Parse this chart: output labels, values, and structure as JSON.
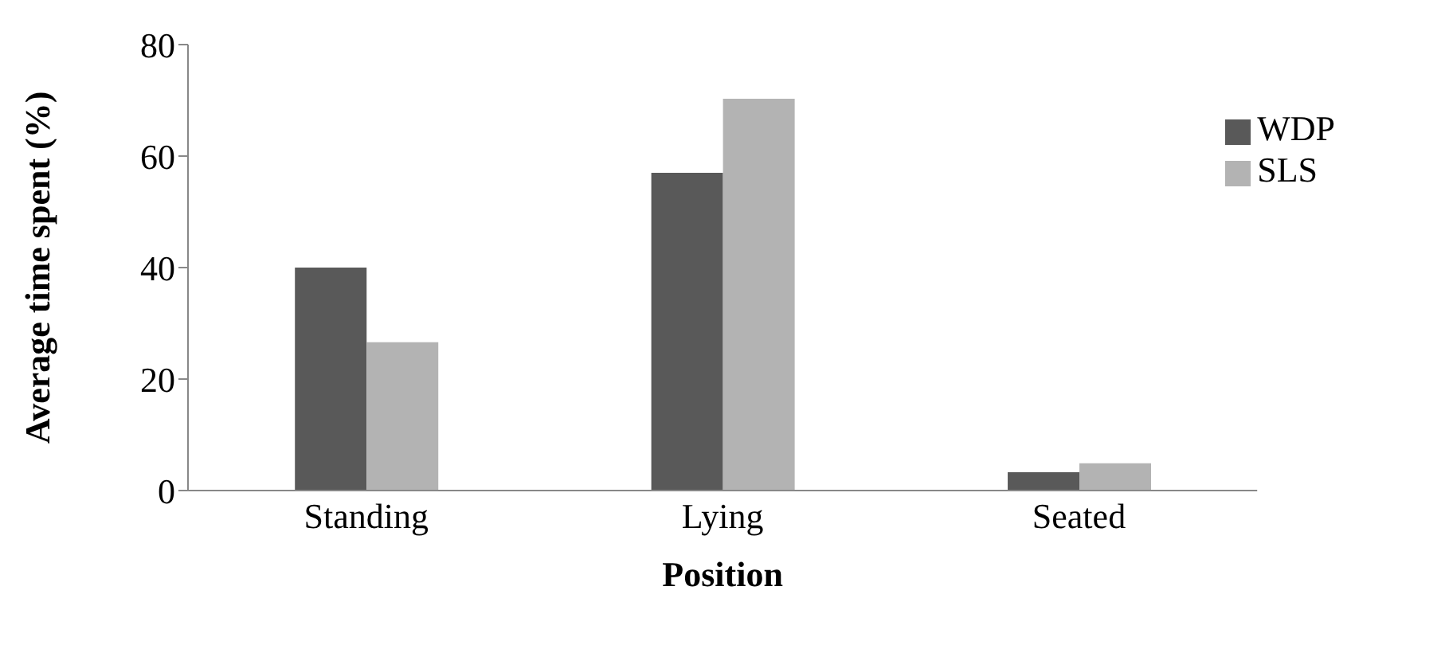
{
  "chart_data": {
    "type": "bar",
    "xlabel": "Position",
    "ylabel": "Average time spent (%)",
    "categories": [
      "Standing",
      "Lying",
      "Seated"
    ],
    "series": [
      {
        "name": "WDP",
        "color": "#595959",
        "values": [
          40,
          57,
          3.3
        ]
      },
      {
        "name": "SLS",
        "color": "#b3b3b3",
        "values": [
          26.6,
          70.3,
          4.9
        ]
      }
    ],
    "ylim": [
      0,
      80
    ],
    "yticks": [
      0,
      20,
      40,
      60,
      80
    ],
    "legend": "top right"
  }
}
